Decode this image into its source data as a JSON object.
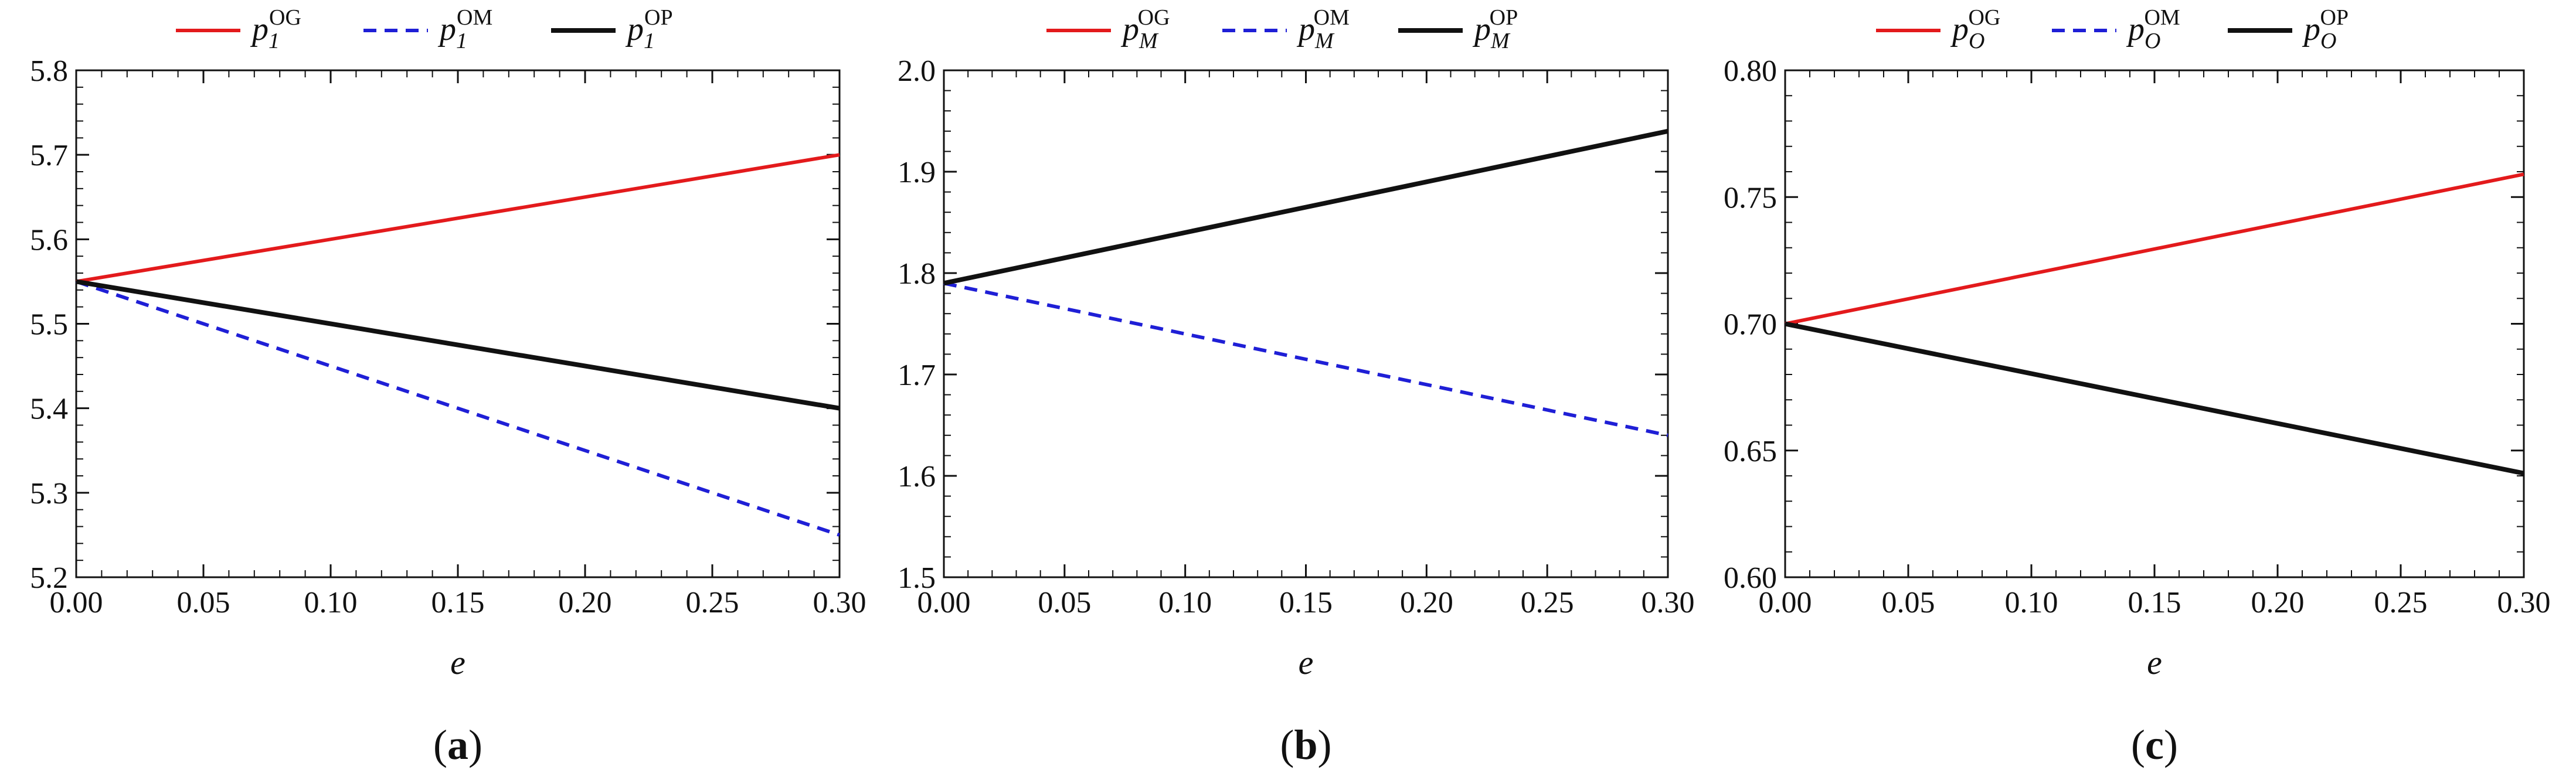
{
  "figure": {
    "x_values": [
      0.0,
      0.3
    ]
  },
  "chart_data": [
    {
      "type": "line",
      "panel_label": "a",
      "xlabel": "e",
      "ylabel": "",
      "xlim": [
        0.0,
        0.3
      ],
      "ylim": [
        5.2,
        5.8
      ],
      "x_ticks": [
        "0.00",
        "0.05",
        "0.10",
        "0.15",
        "0.20",
        "0.25",
        "0.30"
      ],
      "y_ticks": [
        "5.2",
        "5.3",
        "5.4",
        "5.5",
        "5.6",
        "5.7",
        "5.8"
      ],
      "legend_position": "top-center",
      "series": [
        {
          "name": "p1OG",
          "base": "p",
          "sub": "1",
          "sup": "OG",
          "style": "solid",
          "color": "#e31a1c",
          "x": [
            0.0,
            0.3
          ],
          "values": [
            5.55,
            5.7
          ]
        },
        {
          "name": "p1OM",
          "base": "p",
          "sub": "1",
          "sup": "OM",
          "style": "dashed",
          "color": "#1f1fd6",
          "x": [
            0.0,
            0.3
          ],
          "values": [
            5.55,
            5.25
          ]
        },
        {
          "name": "p1OP",
          "base": "p",
          "sub": "1",
          "sup": "OP",
          "style": "solid",
          "color": "#111111",
          "x": [
            0.0,
            0.3
          ],
          "values": [
            5.55,
            5.4
          ]
        }
      ]
    },
    {
      "type": "line",
      "panel_label": "b",
      "xlabel": "e",
      "ylabel": "",
      "xlim": [
        0.0,
        0.3
      ],
      "ylim": [
        1.5,
        2.0
      ],
      "x_ticks": [
        "0.00",
        "0.05",
        "0.10",
        "0.15",
        "0.20",
        "0.25",
        "0.30"
      ],
      "y_ticks": [
        "1.5",
        "1.6",
        "1.7",
        "1.8",
        "1.9",
        "2.0"
      ],
      "legend_position": "top-center",
      "series": [
        {
          "name": "pMOG",
          "base": "p",
          "sub": "M",
          "sup": "OG",
          "style": "solid",
          "color": "#e31a1c",
          "x": [
            0.0,
            0.3
          ],
          "values": [
            1.79,
            1.94
          ]
        },
        {
          "name": "pMOM",
          "base": "p",
          "sub": "M",
          "sup": "OM",
          "style": "dashed",
          "color": "#1f1fd6",
          "x": [
            0.0,
            0.3
          ],
          "values": [
            1.79,
            1.64
          ]
        },
        {
          "name": "pMOP",
          "base": "p",
          "sub": "M",
          "sup": "OP",
          "style": "solid",
          "color": "#111111",
          "x": [
            0.0,
            0.3
          ],
          "values": [
            1.79,
            1.94
          ]
        }
      ]
    },
    {
      "type": "line",
      "panel_label": "c",
      "xlabel": "e",
      "ylabel": "",
      "xlim": [
        0.0,
        0.3
      ],
      "ylim": [
        0.6,
        0.8
      ],
      "x_ticks": [
        "0.00",
        "0.05",
        "0.10",
        "0.15",
        "0.20",
        "0.25",
        "0.30"
      ],
      "y_ticks": [
        "0.60",
        "0.65",
        "0.70",
        "0.75",
        "0.80"
      ],
      "legend_position": "top-center",
      "series": [
        {
          "name": "pOOG",
          "base": "p",
          "sub": "O",
          "sup": "OG",
          "style": "solid",
          "color": "#e31a1c",
          "x": [
            0.0,
            0.3
          ],
          "values": [
            0.7,
            0.759
          ]
        },
        {
          "name": "pOOM",
          "base": "p",
          "sub": "O",
          "sup": "OM",
          "style": "dashed",
          "color": "#1f1fd6",
          "x": [
            0.0,
            0.3
          ],
          "values": [
            0.7,
            0.641
          ]
        },
        {
          "name": "pOOP",
          "base": "p",
          "sub": "O",
          "sup": "OP",
          "style": "solid",
          "color": "#111111",
          "x": [
            0.0,
            0.3
          ],
          "values": [
            0.7,
            0.641
          ]
        }
      ]
    }
  ]
}
